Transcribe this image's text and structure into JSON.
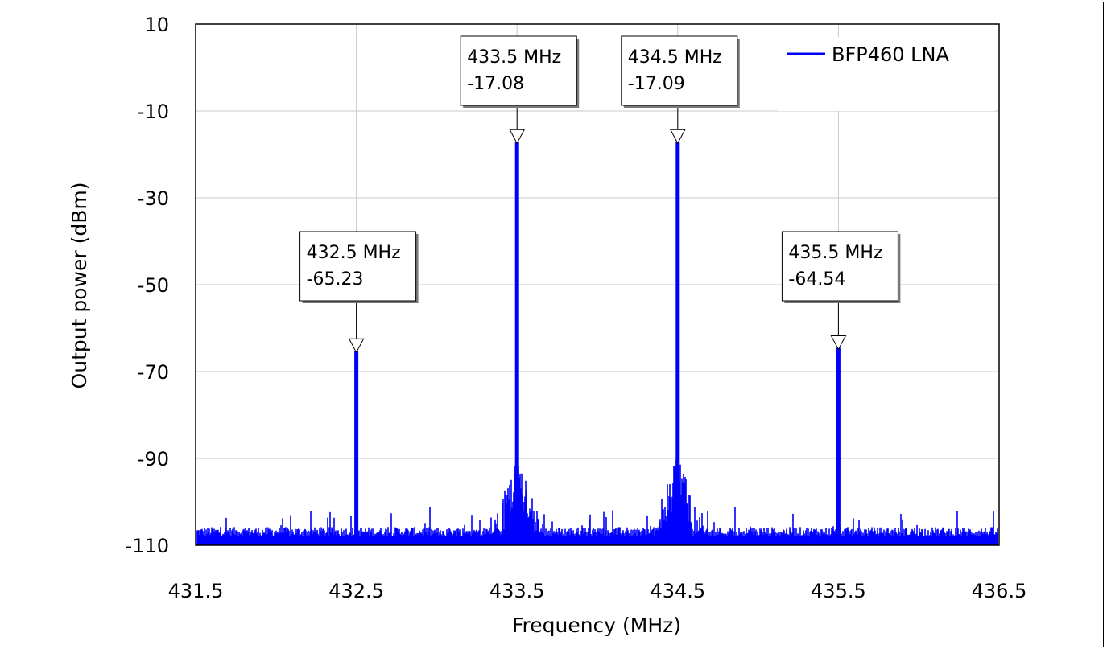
{
  "chart_data": {
    "type": "line",
    "title": "",
    "xlabel": "Frequency (MHz)",
    "ylabel": "Output power (dBm)",
    "xlim": [
      431.5,
      436.5
    ],
    "ylim": [
      -110,
      10
    ],
    "x_ticks": [
      "431.5",
      "432.5",
      "433.5",
      "434.5",
      "435.5",
      "436.5"
    ],
    "y_ticks": [
      "10",
      "-10",
      "-30",
      "-50",
      "-70",
      "-90",
      "-110"
    ],
    "grid": true,
    "legend_position": "top-right",
    "series": [
      {
        "name": "BFP460 LNA",
        "color": "#0000ff",
        "peaks": [
          {
            "x": 432.5,
            "y": -65.23
          },
          {
            "x": 433.5,
            "y": -17.08
          },
          {
            "x": 434.5,
            "y": -17.09
          },
          {
            "x": 435.5,
            "y": -64.54
          }
        ],
        "noise_floor": -108
      }
    ],
    "markers": [
      {
        "freq": 432.5,
        "value": -65.23,
        "label_freq": "432.5 MHz",
        "label_value": "-65.23"
      },
      {
        "freq": 433.5,
        "value": -17.08,
        "label_freq": "433.5 MHz",
        "label_value": "-17.08"
      },
      {
        "freq": 434.5,
        "value": -17.09,
        "label_freq": "434.5 MHz",
        "label_value": "-17.09"
      },
      {
        "freq": 435.5,
        "value": -64.54,
        "label_freq": "435.5 MHz",
        "label_value": "-64.54"
      }
    ]
  }
}
